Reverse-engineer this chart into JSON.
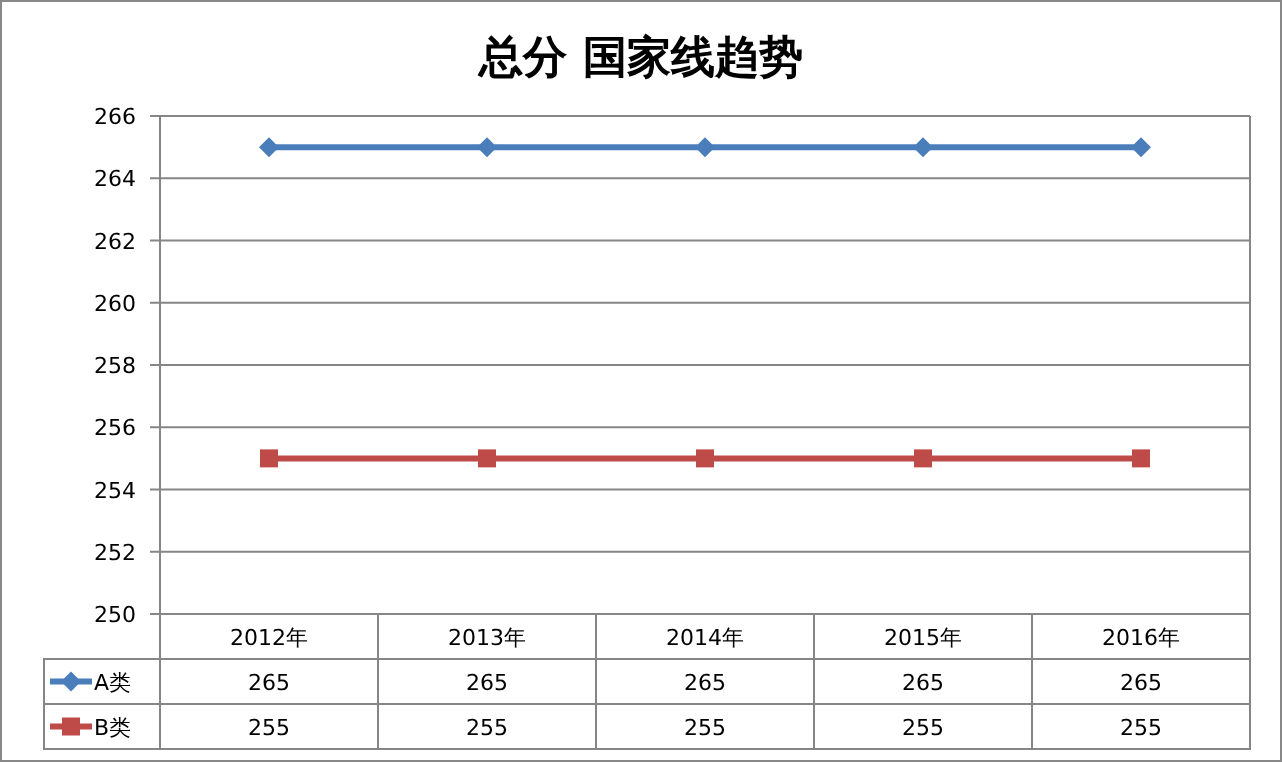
{
  "chart_data": {
    "type": "line",
    "title": "总分 国家线趋势",
    "categories": [
      "2012年",
      "2013年",
      "2014年",
      "2015年",
      "2016年"
    ],
    "series": [
      {
        "name": "A类",
        "color": "#4a7ebb",
        "marker": "diamond",
        "values": [
          265,
          265,
          265,
          265,
          265
        ]
      },
      {
        "name": "B类",
        "color": "#be4b48",
        "marker": "square",
        "values": [
          255,
          255,
          255,
          255,
          255
        ]
      }
    ],
    "ylim": [
      250,
      266
    ],
    "yticks": [
      250,
      252,
      254,
      256,
      258,
      260,
      262,
      264,
      266
    ],
    "grid": "y",
    "data_labels": true,
    "legend": "bottom left"
  }
}
